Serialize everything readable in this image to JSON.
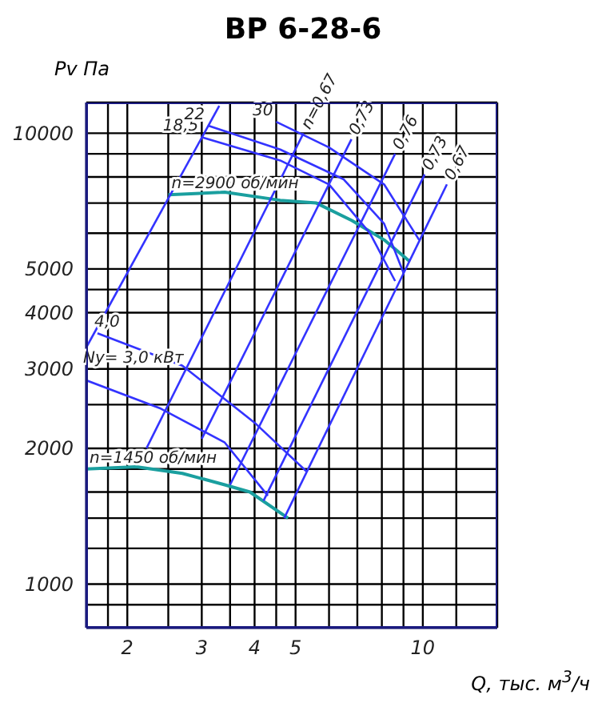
{
  "chart_data": {
    "type": "line",
    "title": "ВР 6-28-6",
    "xlabel": "Q, тыс. м$^{3}$/ч",
    "ylabel": "Pv Па",
    "log": "xy",
    "grid": true,
    "legend": false,
    "marker": "none",
    "line_style": "solid",
    "xlim": [
      1.6,
      15
    ],
    "ylim": [
      800,
      11700
    ],
    "xticks": [
      {
        "value": 1.8,
        "label": null
      },
      2,
      {
        "value": 2.5,
        "label": null
      },
      3,
      {
        "value": 3.5,
        "label": null
      },
      4,
      {
        "value": 4.5,
        "label": null
      },
      5,
      {
        "value": 6,
        "label": null
      },
      {
        "value": 7,
        "label": null
      },
      {
        "value": 8,
        "label": null
      },
      {
        "value": 9,
        "label": null
      },
      10,
      {
        "value": 12,
        "label": null
      }
    ],
    "yticks": [
      {
        "value": 900,
        "label": null
      },
      1000,
      {
        "value": 1200,
        "label": null
      },
      {
        "value": 1400,
        "label": null
      },
      {
        "value": 1600,
        "label": null
      },
      {
        "value": 1800,
        "label": null
      },
      2000,
      {
        "value": 2500,
        "label": null
      },
      3000,
      4000,
      {
        "value": 4500,
        "label": null
      },
      5000,
      {
        "value": 6000,
        "label": null
      },
      {
        "value": 7000,
        "label": null
      },
      {
        "value": 8000,
        "label": null
      },
      {
        "value": 9000,
        "label": null
      },
      10000
    ],
    "series": [
      {
        "name": "n=2900 об/мин",
        "color": "#1a9f9f",
        "x": [
          2.5,
          3.4,
          4.6,
          5.6,
          6.8,
          8.1,
          9.3
        ],
        "values": [
          7300,
          7400,
          7100,
          7000,
          6400,
          5800,
          5200
        ]
      },
      {
        "name": "n=1450 об/мин",
        "color": "#1a9f9f",
        "x": [
          1.6,
          2.1,
          2.7,
          3.4,
          3.9,
          4.8
        ],
        "values": [
          1800,
          1820,
          1760,
          1660,
          1600,
          1400
        ]
      },
      {
        "name": "Ny= 3,0 кВт",
        "color": "#3333ff",
        "x": [
          1.6,
          2.4,
          3.4,
          4.3
        ],
        "values": [
          2830,
          2450,
          2060,
          1570
        ]
      },
      {
        "name": "4,0",
        "color": "#3333ff",
        "x": [
          1.7,
          2.7,
          4.0,
          5.3
        ],
        "values": [
          3600,
          3050,
          2280,
          1780
        ]
      },
      {
        "name": "18,5",
        "color": "#3333ff",
        "x": [
          3.0,
          4.6,
          6.0,
          7.5,
          8.6
        ],
        "values": [
          9800,
          8700,
          7700,
          6000,
          4700
        ]
      },
      {
        "name": "22",
        "color": "#3333ff",
        "x": [
          3.1,
          4.6,
          6.5,
          8.1,
          9.0
        ],
        "values": [
          10400,
          9200,
          7900,
          6300,
          4900
        ]
      },
      {
        "name": "30",
        "color": "#3333ff",
        "x": [
          4.5,
          6.0,
          8.1,
          9.8
        ],
        "values": [
          10600,
          9300,
          7700,
          5800
        ]
      },
      {
        "color": "#3333ff",
        "x": [
          1.6,
          3.3
        ],
        "values": [
          3350,
          11500
        ]
      },
      {
        "name": "n=0,67",
        "color": "#3333ff",
        "x": [
          2.22,
          5.22
        ],
        "values": [
          2000,
          10000
        ]
      },
      {
        "name": "0,73",
        "color": "#3333ff",
        "x": [
          3.0,
          6.78
        ],
        "values": [
          2100,
          9700
        ]
      },
      {
        "name": "0,76",
        "color": "#3333ff",
        "x": [
          3.5,
          8.6
        ],
        "values": [
          1660,
          9000
        ]
      },
      {
        "name": "0,73",
        "color": "#3333ff",
        "x": [
          4.2,
          10.1
        ],
        "values": [
          1530,
          8100
        ]
      },
      {
        "name": "0,67",
        "color": "#3333ff",
        "x": [
          4.7,
          11.4
        ],
        "values": [
          1400,
          7700
        ]
      }
    ]
  }
}
